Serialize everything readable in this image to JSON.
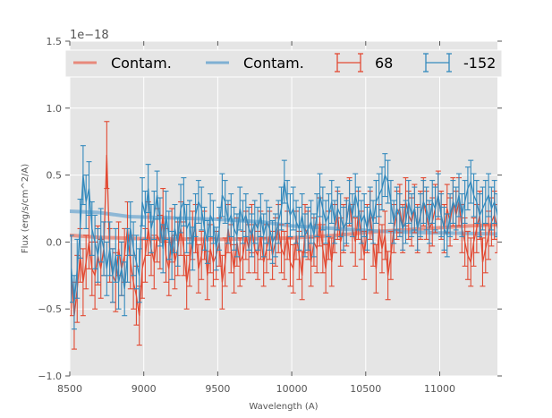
{
  "chart_data": {
    "type": "line",
    "title": "",
    "xlabel": "Wavelength (A)",
    "ylabel": "Flux (erg/s/cm^2/A)",
    "y_offset_label": "1e−18",
    "xlim": [
      8500,
      11390
    ],
    "ylim": [
      -1.0,
      1.5
    ],
    "x_ticks": [
      8500,
      9000,
      9500,
      10000,
      10500,
      11000
    ],
    "x_tick_labels": [
      "8500",
      "9000",
      "9500",
      "10000",
      "10500",
      "11000"
    ],
    "y_ticks": [
      -1.0,
      -0.5,
      0.0,
      0.5,
      1.0,
      1.5
    ],
    "y_tick_labels": [
      "−1.0",
      "−0.5",
      "0.0",
      "0.5",
      "1.0",
      "1.5"
    ],
    "grid": true,
    "legend_position": "top",
    "legend": [
      {
        "label": "Contam.",
        "kind": "line",
        "color": "#e8897b"
      },
      {
        "label": "Contam.",
        "kind": "line",
        "color": "#7fb0d3"
      },
      {
        "label": "68",
        "kind": "errorbar",
        "color": "#e24a33"
      },
      {
        "label": "-152",
        "kind": "errorbar",
        "color": "#348abd"
      }
    ],
    "x_start": 8510,
    "x_step": 20,
    "series": [
      {
        "name": "68",
        "color": "#e24a33",
        "values": [
          -0.25,
          -0.55,
          -0.35,
          -0.1,
          -0.3,
          -0.15,
          0.0,
          -0.2,
          -0.25,
          -0.1,
          -0.2,
          -0.05,
          0.65,
          -0.1,
          -0.25,
          -0.3,
          -0.05,
          -0.2,
          -0.1,
          0.1,
          -0.15,
          -0.3,
          -0.4,
          -0.55,
          -0.2,
          -0.1,
          0.1,
          -0.05,
          -0.15,
          0.05,
          0.0,
          0.2,
          -0.1,
          -0.2,
          0.05,
          -0.15,
          -0.05,
          0.1,
          -0.05,
          -0.3,
          -0.15,
          0.05,
          0.1,
          -0.2,
          -0.1,
          0.05,
          -0.25,
          -0.05,
          -0.15,
          -0.1,
          0.0,
          -0.3,
          -0.15,
          0.1,
          -0.05,
          -0.2,
          0.0,
          -0.15,
          -0.1,
          0.05,
          -0.05,
          0.1,
          -0.05,
          -0.1,
          0.05,
          -0.15,
          -0.05,
          0.05,
          -0.1,
          0.0,
          0.1,
          -0.05,
          -0.1,
          0.05,
          -0.15,
          -0.2,
          0.05,
          -0.1,
          -0.25,
          0.1,
          0.05,
          -0.15,
          0.0,
          -0.05,
          0.15,
          -0.05,
          -0.2,
          0.05,
          -0.15,
          0.1,
          0.2,
          0.0,
          0.1,
          0.15,
          0.3,
          0.1,
          0.0,
          0.2,
          0.05,
          -0.1,
          0.1,
          0.2,
          0.0,
          -0.2,
          0.1,
          -0.05,
          0.05,
          -0.25,
          -0.1,
          0.1,
          0.2,
          0.25,
          0.1,
          0.3,
          0.2,
          0.15,
          0.25,
          0.1,
          0.2,
          0.3,
          0.2,
          0.1,
          0.15,
          0.25,
          0.35,
          0.2,
          0.1,
          0.25,
          0.15,
          0.3,
          0.2,
          0.3,
          0.1,
          0.0,
          -0.1,
          -0.15,
          0.0,
          0.1,
          0.2,
          -0.15,
          -0.05,
          0.05,
          0.15,
          0.2,
          0.1
        ],
        "errors": [
          0.3,
          0.25,
          0.25,
          0.2,
          0.25,
          0.2,
          0.2,
          0.2,
          0.25,
          0.22,
          0.22,
          0.2,
          0.25,
          0.2,
          0.2,
          0.22,
          0.2,
          0.2,
          0.2,
          0.2,
          0.2,
          0.2,
          0.22,
          0.22,
          0.22,
          0.2,
          0.2,
          0.2,
          0.2,
          0.2,
          0.2,
          0.2,
          0.2,
          0.2,
          0.2,
          0.2,
          0.2,
          0.2,
          0.2,
          0.2,
          0.18,
          0.18,
          0.18,
          0.18,
          0.18,
          0.18,
          0.18,
          0.18,
          0.18,
          0.18,
          0.18,
          0.2,
          0.18,
          0.18,
          0.18,
          0.18,
          0.18,
          0.18,
          0.18,
          0.18,
          0.18,
          0.18,
          0.18,
          0.18,
          0.18,
          0.18,
          0.18,
          0.18,
          0.18,
          0.18,
          0.18,
          0.18,
          0.18,
          0.18,
          0.18,
          0.18,
          0.18,
          0.18,
          0.18,
          0.18,
          0.18,
          0.18,
          0.18,
          0.18,
          0.18,
          0.18,
          0.18,
          0.18,
          0.18,
          0.18,
          0.18,
          0.18,
          0.18,
          0.18,
          0.18,
          0.18,
          0.18,
          0.18,
          0.18,
          0.18,
          0.18,
          0.18,
          0.18,
          0.18,
          0.18,
          0.18,
          0.18,
          0.18,
          0.18,
          0.18,
          0.18,
          0.18,
          0.18,
          0.18,
          0.18,
          0.18,
          0.18,
          0.18,
          0.18,
          0.18,
          0.18,
          0.18,
          0.18,
          0.18,
          0.18,
          0.18,
          0.18,
          0.18,
          0.18,
          0.18,
          0.18,
          0.18,
          0.18,
          0.18,
          0.18,
          0.18,
          0.18,
          0.18,
          0.18,
          0.18,
          0.18,
          0.18,
          0.18,
          0.18,
          0.18
        ]
      },
      {
        "name": "-152",
        "color": "#348abd",
        "values": [
          -0.2,
          -0.45,
          -0.2,
          0.1,
          0.5,
          0.3,
          0.4,
          0.1,
          0.0,
          -0.1,
          0.05,
          -0.05,
          -0.2,
          -0.05,
          -0.25,
          -0.1,
          -0.3,
          -0.2,
          -0.35,
          -0.1,
          0.1,
          -0.05,
          -0.15,
          -0.25,
          0.3,
          0.2,
          0.4,
          0.1,
          0.2,
          0.35,
          0.15,
          -0.05,
          0.2,
          0.05,
          -0.1,
          0.1,
          0.0,
          0.25,
          0.3,
          0.1,
          0.15,
          -0.05,
          0.2,
          0.3,
          0.25,
          0.1,
          0.0,
          0.2,
          0.15,
          -0.05,
          0.1,
          0.35,
          0.3,
          0.15,
          0.2,
          0.1,
          0.05,
          0.25,
          0.15,
          0.2,
          0.1,
          0.05,
          0.15,
          0.1,
          0.2,
          0.05,
          0.15,
          0.1,
          0.0,
          0.05,
          0.15,
          0.25,
          0.45,
          0.3,
          0.2,
          0.25,
          0.15,
          0.1,
          0.2,
          0.05,
          0.1,
          0.15,
          0.05,
          0.2,
          0.35,
          0.25,
          0.15,
          0.2,
          0.3,
          0.15,
          0.25,
          0.2,
          0.1,
          0.15,
          0.3,
          0.2,
          0.35,
          0.25,
          0.15,
          0.2,
          0.1,
          0.25,
          0.15,
          0.3,
          0.35,
          0.4,
          0.5,
          0.45,
          0.3,
          0.15,
          0.25,
          0.2,
          0.1,
          0.15,
          0.3,
          0.2,
          0.25,
          0.1,
          0.2,
          0.3,
          0.25,
          0.15,
          0.3,
          0.25,
          0.35,
          0.2,
          0.1,
          0.05,
          0.2,
          0.3,
          0.25,
          0.35,
          0.2,
          0.3,
          0.4,
          0.45,
          0.35,
          0.3,
          0.2,
          0.25,
          0.3,
          0.35,
          0.25,
          0.3,
          0.2
        ],
        "errors": [
          0.25,
          0.2,
          0.22,
          0.22,
          0.22,
          0.2,
          0.2,
          0.2,
          0.2,
          0.2,
          0.2,
          0.2,
          0.2,
          0.2,
          0.2,
          0.2,
          0.2,
          0.2,
          0.2,
          0.2,
          0.2,
          0.2,
          0.2,
          0.2,
          0.18,
          0.18,
          0.18,
          0.18,
          0.18,
          0.18,
          0.18,
          0.18,
          0.18,
          0.18,
          0.18,
          0.18,
          0.18,
          0.18,
          0.18,
          0.18,
          0.16,
          0.16,
          0.16,
          0.16,
          0.16,
          0.16,
          0.16,
          0.16,
          0.16,
          0.16,
          0.16,
          0.16,
          0.16,
          0.16,
          0.16,
          0.16,
          0.16,
          0.16,
          0.16,
          0.16,
          0.16,
          0.16,
          0.16,
          0.16,
          0.16,
          0.16,
          0.16,
          0.16,
          0.16,
          0.16,
          0.16,
          0.16,
          0.16,
          0.16,
          0.16,
          0.16,
          0.16,
          0.16,
          0.16,
          0.16,
          0.16,
          0.16,
          0.16,
          0.16,
          0.16,
          0.16,
          0.16,
          0.16,
          0.16,
          0.16,
          0.16,
          0.16,
          0.16,
          0.16,
          0.16,
          0.16,
          0.16,
          0.16,
          0.16,
          0.16,
          0.16,
          0.16,
          0.16,
          0.16,
          0.16,
          0.16,
          0.16,
          0.16,
          0.16,
          0.16,
          0.16,
          0.16,
          0.16,
          0.16,
          0.16,
          0.16,
          0.16,
          0.16,
          0.16,
          0.16,
          0.16,
          0.16,
          0.16,
          0.16,
          0.16,
          0.16,
          0.16,
          0.16,
          0.16,
          0.16,
          0.16,
          0.16,
          0.16,
          0.16,
          0.16,
          0.16,
          0.16,
          0.16,
          0.16,
          0.16,
          0.16,
          0.16,
          0.16,
          0.16,
          0.16
        ]
      }
    ],
    "contamination": [
      {
        "name": "Contam. (68)",
        "color": "#e8897b",
        "x": [
          8500,
          8700,
          9000,
          9500,
          10000,
          10300,
          10600,
          10900,
          11200,
          11390
        ],
        "values": [
          0.05,
          0.035,
          0.025,
          0.02,
          0.03,
          0.05,
          0.08,
          0.1,
          0.12,
          0.13
        ]
      },
      {
        "name": "Contam. (-152)",
        "color": "#7fb0d3",
        "x": [
          8500,
          8700,
          8900,
          9200,
          9500,
          9800,
          10000,
          10300,
          10600,
          10900,
          11200,
          11390
        ],
        "values": [
          0.23,
          0.22,
          0.19,
          0.18,
          0.17,
          0.15,
          0.12,
          0.1,
          0.08,
          0.07,
          0.065,
          0.06
        ]
      }
    ]
  }
}
